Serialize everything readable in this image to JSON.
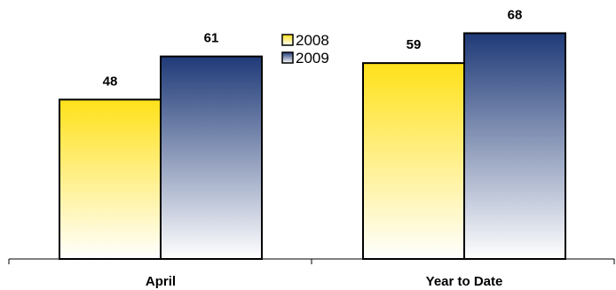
{
  "chart_data": {
    "type": "bar",
    "categories": [
      "April",
      "Year to Date"
    ],
    "series": [
      {
        "name": "2008",
        "values": [
          48,
          59
        ],
        "color_top": "#ffe11a",
        "color_bottom": "#ffffff"
      },
      {
        "name": "2009",
        "values": [
          61,
          68
        ],
        "color_top": "#1f3a78",
        "color_bottom": "#ffffff"
      }
    ],
    "ylim": [
      0,
      78
    ],
    "grid": false,
    "legend_position": "top-center",
    "data_labels": true,
    "y_axis_visible": false
  }
}
